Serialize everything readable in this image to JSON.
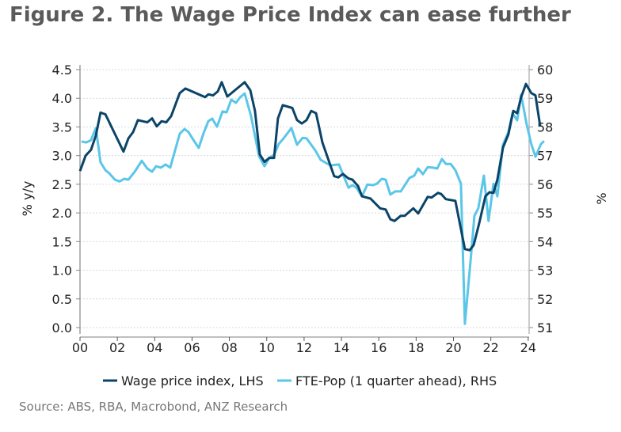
{
  "title": "Figure 2. The Wage Price Index can ease further",
  "source": "Source: ABS, RBA, Macrobond, ANZ Research",
  "chart_data": {
    "type": "line",
    "title": "Figure 2. The Wage Price Index can ease further",
    "ylabel": "% y/y",
    "y2label": "%",
    "xlim": [
      0,
      24.9
    ],
    "ylim": [
      0,
      4.5
    ],
    "y2lim": [
      51,
      60
    ],
    "xticks": [
      "00",
      "02",
      "04",
      "06",
      "08",
      "10",
      "12",
      "14",
      "16",
      "18",
      "20",
      "22",
      "24"
    ],
    "yticks": [
      "0.0",
      "0.5",
      "1.0",
      "1.5",
      "2.0",
      "2.5",
      "3.0",
      "3.5",
      "4.0",
      "4.5"
    ],
    "y2ticks": [
      "51",
      "52",
      "53",
      "54",
      "55",
      "56",
      "57",
      "58",
      "59",
      "60"
    ],
    "grid": true,
    "legend": "bottom",
    "series": [
      {
        "name": "Wage price index, LHS",
        "axis": "left",
        "color": "#0b4468",
        "x": [
          0,
          0.3,
          0.59,
          0.85,
          1.1,
          1.36,
          2.33,
          2.59,
          2.84,
          3.1,
          3.6,
          3.86,
          4.11,
          4.37,
          4.62,
          4.88,
          5.34,
          5.64,
          6.7,
          6.87,
          7.12,
          7.38,
          7.59,
          7.89,
          8.82,
          9.12,
          9.37,
          9.63,
          9.88,
          10.14,
          10.39,
          10.6,
          10.86,
          11.37,
          11.62,
          11.88,
          12.13,
          12.38,
          12.64,
          12.98,
          13.61,
          13.83,
          14.08,
          14.38,
          14.59,
          14.89,
          15.1,
          15.56,
          16.07,
          16.37,
          16.62,
          16.84,
          17.18,
          17.39,
          17.85,
          18.11,
          18.62,
          18.83,
          19.17,
          19.34,
          19.59,
          20.1,
          20.61,
          20.87,
          21.08,
          21.37,
          21.71,
          21.93,
          22.14,
          22.35,
          22.65,
          22.94,
          23.2,
          23.41,
          23.62,
          23.88,
          24.17,
          24.39,
          24.64
        ],
        "y": [
          2.73,
          3.0,
          3.1,
          3.35,
          3.75,
          3.72,
          3.07,
          3.3,
          3.41,
          3.62,
          3.58,
          3.65,
          3.51,
          3.6,
          3.58,
          3.69,
          4.09,
          4.17,
          4.02,
          4.07,
          4.05,
          4.12,
          4.28,
          4.03,
          4.28,
          4.14,
          3.78,
          3.02,
          2.89,
          2.96,
          2.96,
          3.65,
          3.88,
          3.83,
          3.62,
          3.56,
          3.62,
          3.78,
          3.74,
          3.23,
          2.64,
          2.62,
          2.68,
          2.6,
          2.58,
          2.47,
          2.29,
          2.25,
          2.08,
          2.06,
          1.89,
          1.86,
          1.95,
          1.95,
          2.08,
          1.99,
          2.28,
          2.27,
          2.35,
          2.33,
          2.24,
          2.21,
          1.37,
          1.35,
          1.44,
          1.81,
          2.29,
          2.36,
          2.35,
          2.58,
          3.14,
          3.37,
          3.78,
          3.74,
          4.02,
          4.25,
          4.09,
          4.05,
          3.52
        ]
      },
      {
        "name": "FTE-Pop (1 quarter ahead), RHS",
        "axis": "right",
        "color": "#5bc6e8",
        "x": [
          0.08,
          0.34,
          0.59,
          0.85,
          1.1,
          1.36,
          1.57,
          1.87,
          2.12,
          2.37,
          2.59,
          2.93,
          3.31,
          3.6,
          3.86,
          4.07,
          4.33,
          4.58,
          4.83,
          5.09,
          5.34,
          5.6,
          5.81,
          6.11,
          6.36,
          6.62,
          6.87,
          7.08,
          7.34,
          7.63,
          7.85,
          8.1,
          8.35,
          8.57,
          8.82,
          9.16,
          9.58,
          9.88,
          10.14,
          10.39,
          10.64,
          10.9,
          11.32,
          11.62,
          11.92,
          12.13,
          12.6,
          12.89,
          13.4,
          13.87,
          14.08,
          14.38,
          14.59,
          14.8,
          15.1,
          15.39,
          15.69,
          15.9,
          16.16,
          16.37,
          16.62,
          16.88,
          17.18,
          17.64,
          17.9,
          18.11,
          18.36,
          18.62,
          18.91,
          19.13,
          19.38,
          19.59,
          19.85,
          20.1,
          20.4,
          20.61,
          20.95,
          21.12,
          21.33,
          21.63,
          21.88,
          22.14,
          22.35,
          22.65,
          22.94,
          23.16,
          23.41,
          23.62,
          23.92,
          24.17,
          24.39,
          24.68,
          24.85
        ],
        "y": [
          57.49,
          57.46,
          57.54,
          57.96,
          56.77,
          56.49,
          56.38,
          56.16,
          56.1,
          56.19,
          56.16,
          56.44,
          56.82,
          56.55,
          56.44,
          56.63,
          56.58,
          56.69,
          56.58,
          57.18,
          57.76,
          57.93,
          57.82,
          57.51,
          57.27,
          57.79,
          58.2,
          58.29,
          58.01,
          58.54,
          58.51,
          58.95,
          58.84,
          59.03,
          59.17,
          58.37,
          56.99,
          56.63,
          56.93,
          57.02,
          57.4,
          57.6,
          57.96,
          57.38,
          57.62,
          57.6,
          57.18,
          56.85,
          56.66,
          56.69,
          56.35,
          55.88,
          55.97,
          55.88,
          55.58,
          55.99,
          55.97,
          56.02,
          56.19,
          56.16,
          55.64,
          55.75,
          55.75,
          56.22,
          56.3,
          56.55,
          56.35,
          56.6,
          56.58,
          56.55,
          56.88,
          56.71,
          56.71,
          56.49,
          56.02,
          51.13,
          53.59,
          54.89,
          55.17,
          56.3,
          54.72,
          56.02,
          55.58,
          57.38,
          57.82,
          58.48,
          58.23,
          59.12,
          58.09,
          57.4,
          56.96,
          57.4,
          57.51
        ]
      }
    ]
  }
}
